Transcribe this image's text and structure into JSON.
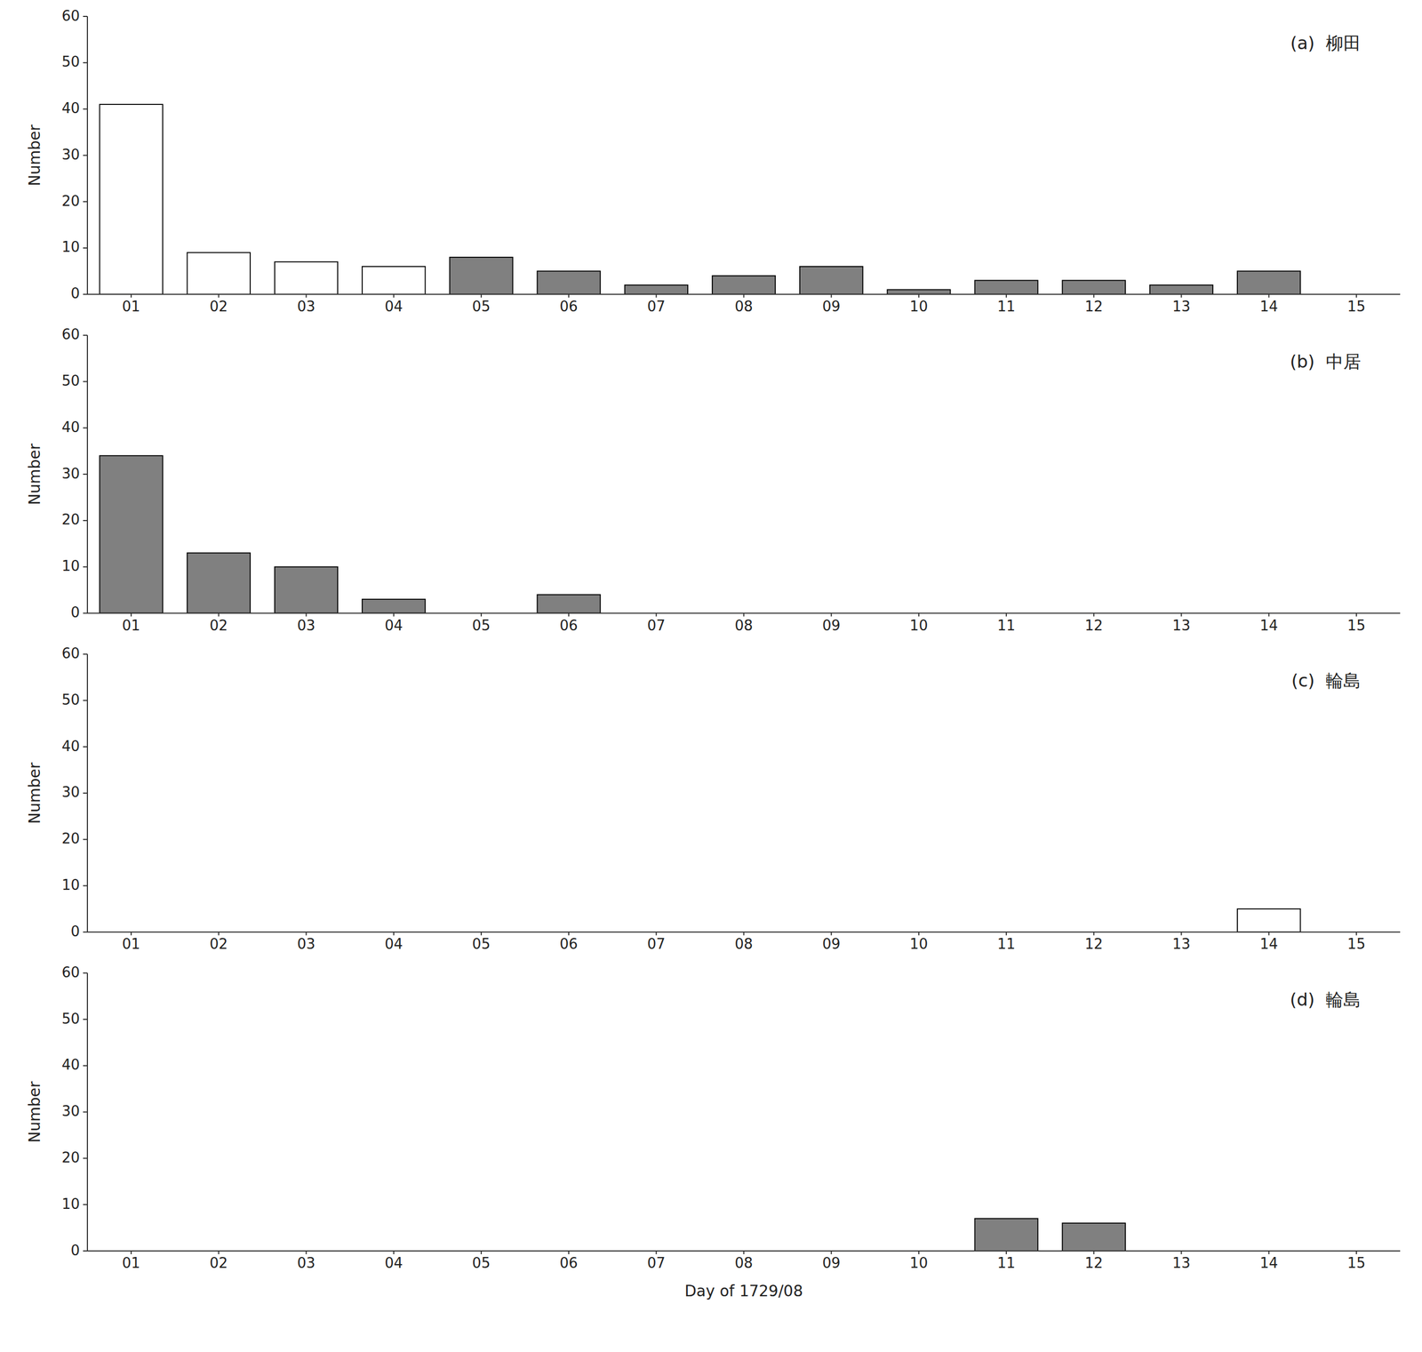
{
  "chart_data": [
    {
      "type": "bar",
      "title": "(a)  柳田",
      "categories": [
        "01",
        "02",
        "03",
        "04",
        "05",
        "06",
        "07",
        "08",
        "09",
        "10",
        "11",
        "12",
        "13",
        "14",
        "15"
      ],
      "values": [
        41,
        9,
        7,
        6,
        8,
        5,
        2,
        4,
        6,
        1,
        3,
        3,
        2,
        5,
        0
      ],
      "colors": [
        "#ffffff",
        "#ffffff",
        "#ffffff",
        "#ffffff",
        "#808080",
        "#808080",
        "#808080",
        "#808080",
        "#808080",
        "#808080",
        "#808080",
        "#808080",
        "#808080",
        "#808080",
        "#808080"
      ],
      "ylim": [
        0,
        60
      ],
      "yticks": [
        0,
        10,
        20,
        30,
        40,
        50,
        60
      ],
      "ylabel": "Number",
      "grid": false
    },
    {
      "type": "bar",
      "title": "(b)  中居",
      "categories": [
        "01",
        "02",
        "03",
        "04",
        "05",
        "06",
        "07",
        "08",
        "09",
        "10",
        "11",
        "12",
        "13",
        "14",
        "15"
      ],
      "values": [
        34,
        13,
        10,
        3,
        0,
        4,
        0,
        0,
        0,
        0,
        0,
        0,
        0,
        0,
        0
      ],
      "colors": [
        "#808080",
        "#808080",
        "#808080",
        "#808080",
        "#808080",
        "#808080",
        "#808080",
        "#808080",
        "#808080",
        "#808080",
        "#808080",
        "#808080",
        "#808080",
        "#808080",
        "#808080"
      ],
      "ylim": [
        0,
        60
      ],
      "yticks": [
        0,
        10,
        20,
        30,
        40,
        50,
        60
      ],
      "ylabel": "Number",
      "grid": false
    },
    {
      "type": "bar",
      "title": "(c)  輪島",
      "categories": [
        "01",
        "02",
        "03",
        "04",
        "05",
        "06",
        "07",
        "08",
        "09",
        "10",
        "11",
        "12",
        "13",
        "14",
        "15"
      ],
      "values": [
        0,
        0,
        0,
        0,
        0,
        0,
        0,
        0,
        0,
        0,
        0,
        0,
        0,
        5,
        0
      ],
      "colors": [
        "#ffffff",
        "#ffffff",
        "#ffffff",
        "#ffffff",
        "#ffffff",
        "#ffffff",
        "#ffffff",
        "#ffffff",
        "#ffffff",
        "#ffffff",
        "#ffffff",
        "#ffffff",
        "#ffffff",
        "#ffffff",
        "#ffffff"
      ],
      "ylim": [
        0,
        60
      ],
      "yticks": [
        0,
        10,
        20,
        30,
        40,
        50,
        60
      ],
      "ylabel": "Number",
      "grid": false
    },
    {
      "type": "bar",
      "title": "(d)  輪島",
      "categories": [
        "01",
        "02",
        "03",
        "04",
        "05",
        "06",
        "07",
        "08",
        "09",
        "10",
        "11",
        "12",
        "13",
        "14",
        "15"
      ],
      "values": [
        0,
        0,
        0,
        0,
        0,
        0,
        0,
        0,
        0,
        0,
        7,
        6,
        0,
        0,
        0
      ],
      "colors": [
        "#808080",
        "#808080",
        "#808080",
        "#808080",
        "#808080",
        "#808080",
        "#808080",
        "#808080",
        "#808080",
        "#808080",
        "#808080",
        "#808080",
        "#808080",
        "#808080",
        "#808080"
      ],
      "ylim": [
        0,
        60
      ],
      "yticks": [
        0,
        10,
        20,
        30,
        40,
        50,
        60
      ],
      "xlabel": "Day of 1729/08",
      "ylabel": "Number",
      "grid": false
    }
  ]
}
